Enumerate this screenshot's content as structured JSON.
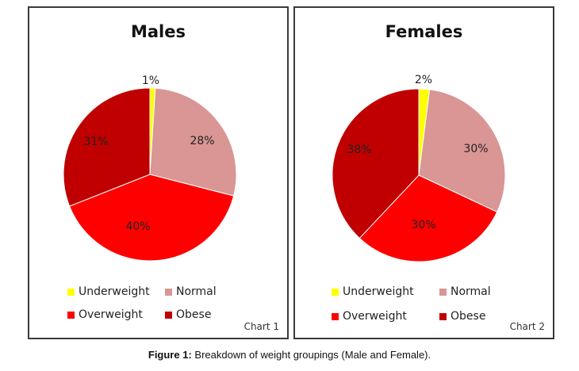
{
  "caption": {
    "label": "Figure 1:",
    "text": "Breakdown of weight groupings (Male and Female)."
  },
  "colors": {
    "Underweight": "#ffff00",
    "Normal": "#d99694",
    "Overweight": "#ff0000",
    "Obese": "#c00000"
  },
  "chart_data": [
    {
      "type": "pie",
      "title": "Males",
      "tag": "Chart 1",
      "categories": [
        "Underweight",
        "Normal",
        "Overweight",
        "Obese"
      ],
      "values": [
        1,
        28,
        40,
        31
      ],
      "labels": [
        "1%",
        "28%",
        "40%",
        "31%"
      ],
      "legend": "bottom"
    },
    {
      "type": "pie",
      "title": "Females",
      "tag": "Chart 2",
      "categories": [
        "Underweight",
        "Normal",
        "Overweight",
        "Obese"
      ],
      "values": [
        2,
        30,
        30,
        38
      ],
      "labels": [
        "2%",
        "30%",
        "30%",
        "38%"
      ],
      "legend": "bottom"
    }
  ]
}
